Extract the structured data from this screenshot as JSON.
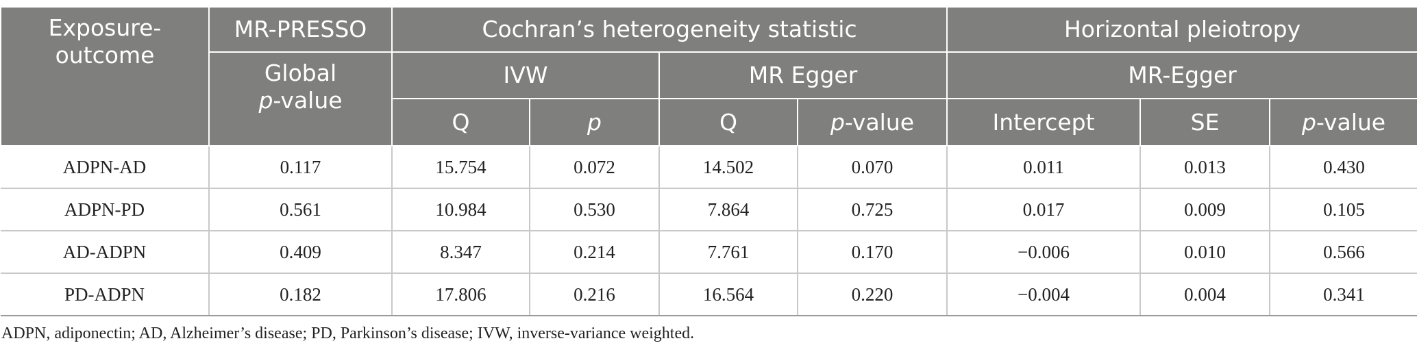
{
  "header": {
    "exposure_outcome": "Exposure-outcome",
    "mr_presso": "MR-PRESSO",
    "global": "Global",
    "p": "p",
    "value_suffix": "-value",
    "cochran": "Cochran’s heterogeneity statistic",
    "horizontal": "Horizontal pleiotropy",
    "ivw": "IVW",
    "mr_egger": "MR Egger",
    "mr_egger2": "MR-Egger",
    "q": "Q",
    "intercept": "Intercept",
    "se": "SE"
  },
  "rows": [
    {
      "label": "ADPN-AD",
      "presso": "0.117",
      "ivw_q": "15.754",
      "ivw_p": "0.072",
      "egger_q": "14.502",
      "egger_p": "0.070",
      "intercept": "0.011",
      "se": "0.013",
      "pleio_p": "0.430"
    },
    {
      "label": "ADPN-PD",
      "presso": "0.561",
      "ivw_q": "10.984",
      "ivw_p": "0.530",
      "egger_q": "7.864",
      "egger_p": "0.725",
      "intercept": "0.017",
      "se": "0.009",
      "pleio_p": "0.105"
    },
    {
      "label": "AD-ADPN",
      "presso": "0.409",
      "ivw_q": "8.347",
      "ivw_p": "0.214",
      "egger_q": "7.761",
      "egger_p": "0.170",
      "intercept": "−0.006",
      "se": "0.010",
      "pleio_p": "0.566"
    },
    {
      "label": "PD-ADPN",
      "presso": "0.182",
      "ivw_q": "17.806",
      "ivw_p": "0.216",
      "egger_q": "16.564",
      "egger_p": "0.220",
      "intercept": "−0.004",
      "se": "0.004",
      "pleio_p": "0.341"
    }
  ],
  "footnote": "ADPN, adiponectin; AD, Alzheimer’s disease; PD, Parkinson’s disease; IVW, inverse-variance weighted."
}
